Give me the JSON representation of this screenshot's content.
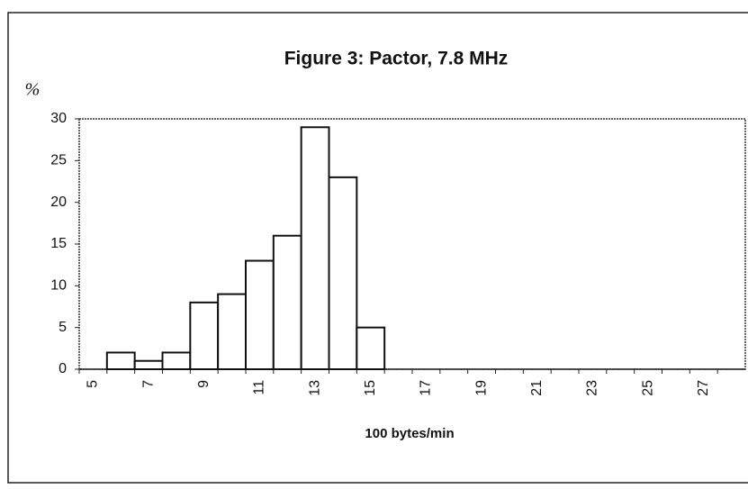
{
  "chart_data": {
    "type": "bar",
    "title": "Figure 3: Pactor, 7.8 MHz",
    "y_label": "%",
    "x_label": "100 bytes/min",
    "categories": [
      "5",
      null,
      "7",
      null,
      "9",
      null,
      "11",
      null,
      "13",
      null,
      "15",
      null,
      "17",
      null,
      "19",
      null,
      "21",
      null,
      "23",
      null,
      "25",
      null,
      "27",
      null
    ],
    "values": [
      0,
      2,
      1,
      2,
      8,
      9,
      13,
      16,
      29,
      23,
      5,
      0,
      0,
      0,
      0,
      0,
      0,
      0,
      0,
      0,
      0,
      0,
      0,
      0
    ],
    "color": "#ffffff",
    "ylim": [
      0,
      30
    ],
    "yticks": [
      0,
      5,
      10,
      15,
      20,
      25,
      30
    ],
    "grid": false
  }
}
